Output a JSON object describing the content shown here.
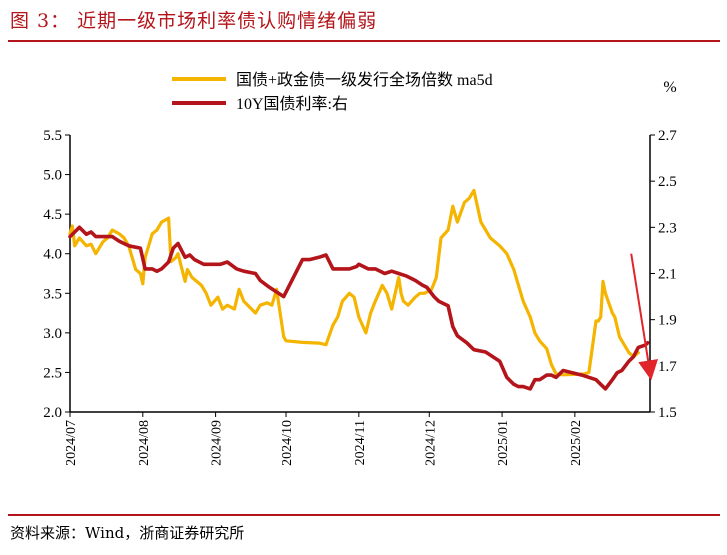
{
  "title": "图 3：  近期一级市场利率债认购情绪偏弱",
  "source": "资料来源：Wind，浙商证券研究所",
  "colors": {
    "accent": "#b3151b",
    "series_gold": "#f4b400",
    "series_red": "#b3151b"
  },
  "chart_data": {
    "type": "line",
    "y_unit_right": "%",
    "ylim_left": [
      2.0,
      5.5
    ],
    "ylim_right": [
      1.5,
      2.7
    ],
    "y_ticks_left": [
      "2.0",
      "2.5",
      "3.0",
      "3.5",
      "4.0",
      "4.5",
      "5.0",
      "5.5"
    ],
    "y_ticks_right": [
      "1.5",
      "1.7",
      "1.9",
      "2.1",
      "2.3",
      "2.5",
      "2.7"
    ],
    "x_ticks": [
      "2024/07",
      "2024/08",
      "2024/09",
      "2024/10",
      "2024/11",
      "2024/12",
      "2025/01",
      "2025/02"
    ],
    "x_range": [
      "2024-07-01",
      "2025-03-05"
    ],
    "arrow": {
      "from": [
        "2025-02-25",
        4.0
      ],
      "to": [
        "2025-03-05",
        2.5
      ]
    },
    "series": [
      {
        "name": "国债+政金债一级发行全场倍数 ma5d",
        "axis": "left",
        "color": "#f4b400",
        "points": [
          [
            "2024-07-01",
            4.25
          ],
          [
            "2024-07-02",
            4.35
          ],
          [
            "2024-07-03",
            4.1
          ],
          [
            "2024-07-05",
            4.2
          ],
          [
            "2024-07-08",
            4.1
          ],
          [
            "2024-07-10",
            4.12
          ],
          [
            "2024-07-12",
            4.0
          ],
          [
            "2024-07-15",
            4.15
          ],
          [
            "2024-07-17",
            4.2
          ],
          [
            "2024-07-19",
            4.3
          ],
          [
            "2024-07-22",
            4.25
          ],
          [
            "2024-07-24",
            4.2
          ],
          [
            "2024-07-26",
            4.1
          ],
          [
            "2024-07-29",
            3.8
          ],
          [
            "2024-07-31",
            3.75
          ],
          [
            "2024-08-01",
            3.62
          ],
          [
            "2024-08-02",
            3.95
          ],
          [
            "2024-08-05",
            4.25
          ],
          [
            "2024-08-07",
            4.3
          ],
          [
            "2024-08-09",
            4.4
          ],
          [
            "2024-08-12",
            4.45
          ],
          [
            "2024-08-13",
            3.9
          ],
          [
            "2024-08-15",
            3.95
          ],
          [
            "2024-08-16",
            4.0
          ],
          [
            "2024-08-19",
            3.65
          ],
          [
            "2024-08-20",
            3.8
          ],
          [
            "2024-08-22",
            3.7
          ],
          [
            "2024-08-26",
            3.6
          ],
          [
            "2024-08-28",
            3.5
          ],
          [
            "2024-08-30",
            3.35
          ],
          [
            "2024-09-02",
            3.45
          ],
          [
            "2024-09-04",
            3.3
          ],
          [
            "2024-09-06",
            3.35
          ],
          [
            "2024-09-09",
            3.3
          ],
          [
            "2024-09-11",
            3.55
          ],
          [
            "2024-09-13",
            3.4
          ],
          [
            "2024-09-18",
            3.25
          ],
          [
            "2024-09-20",
            3.35
          ],
          [
            "2024-09-23",
            3.38
          ],
          [
            "2024-09-25",
            3.35
          ],
          [
            "2024-09-27",
            3.55
          ],
          [
            "2024-09-30",
            2.95
          ],
          [
            "2024-10-01",
            2.9
          ],
          [
            "2024-10-08",
            2.88
          ],
          [
            "2024-10-15",
            2.87
          ],
          [
            "2024-10-18",
            2.85
          ],
          [
            "2024-10-21",
            3.1
          ],
          [
            "2024-10-23",
            3.2
          ],
          [
            "2024-10-25",
            3.4
          ],
          [
            "2024-10-28",
            3.5
          ],
          [
            "2024-10-30",
            3.45
          ],
          [
            "2024-11-01",
            3.2
          ],
          [
            "2024-11-04",
            3.0
          ],
          [
            "2024-11-06",
            3.25
          ],
          [
            "2024-11-08",
            3.4
          ],
          [
            "2024-11-11",
            3.6
          ],
          [
            "2024-11-13",
            3.5
          ],
          [
            "2024-11-15",
            3.3
          ],
          [
            "2024-11-18",
            3.7
          ],
          [
            "2024-11-19",
            3.5
          ],
          [
            "2024-11-20",
            3.4
          ],
          [
            "2024-11-22",
            3.35
          ],
          [
            "2024-11-25",
            3.45
          ],
          [
            "2024-11-27",
            3.5
          ],
          [
            "2024-11-29",
            3.5
          ],
          [
            "2024-12-02",
            3.55
          ],
          [
            "2024-12-04",
            3.7
          ],
          [
            "2024-12-06",
            4.2
          ],
          [
            "2024-12-09",
            4.3
          ],
          [
            "2024-12-11",
            4.6
          ],
          [
            "2024-12-13",
            4.4
          ],
          [
            "2024-12-16",
            4.65
          ],
          [
            "2024-12-18",
            4.7
          ],
          [
            "2024-12-20",
            4.8
          ],
          [
            "2024-12-23",
            4.4
          ],
          [
            "2024-12-25",
            4.3
          ],
          [
            "2024-12-27",
            4.2
          ],
          [
            "2024-12-31",
            4.1
          ],
          [
            "2025-01-03",
            4.0
          ],
          [
            "2025-01-06",
            3.8
          ],
          [
            "2025-01-08",
            3.6
          ],
          [
            "2025-01-10",
            3.4
          ],
          [
            "2025-01-13",
            3.2
          ],
          [
            "2025-01-15",
            3.0
          ],
          [
            "2025-01-17",
            2.9
          ],
          [
            "2025-01-20",
            2.8
          ],
          [
            "2025-01-22",
            2.6
          ],
          [
            "2025-01-24",
            2.48
          ],
          [
            "2025-01-27",
            2.47
          ],
          [
            "2025-02-05",
            2.48
          ],
          [
            "2025-02-07",
            2.5
          ],
          [
            "2025-02-10",
            3.15
          ],
          [
            "2025-02-11",
            3.15
          ],
          [
            "2025-02-12",
            3.2
          ],
          [
            "2025-02-13",
            3.65
          ],
          [
            "2025-02-14",
            3.5
          ],
          [
            "2025-02-17",
            3.25
          ],
          [
            "2025-02-18",
            3.2
          ],
          [
            "2025-02-20",
            2.95
          ],
          [
            "2025-02-24",
            2.75
          ],
          [
            "2025-02-26",
            2.7
          ],
          [
            "2025-02-28",
            2.75
          ]
        ]
      },
      {
        "name": "10Y国债利率:右",
        "axis": "right",
        "color": "#b3151b",
        "points": [
          [
            "2024-07-01",
            2.26
          ],
          [
            "2024-07-03",
            2.28
          ],
          [
            "2024-07-05",
            2.3
          ],
          [
            "2024-07-08",
            2.27
          ],
          [
            "2024-07-10",
            2.28
          ],
          [
            "2024-07-12",
            2.26
          ],
          [
            "2024-07-15",
            2.26
          ],
          [
            "2024-07-19",
            2.26
          ],
          [
            "2024-07-22",
            2.24
          ],
          [
            "2024-07-24",
            2.23
          ],
          [
            "2024-07-26",
            2.22
          ],
          [
            "2024-07-31",
            2.21
          ],
          [
            "2024-08-02",
            2.12
          ],
          [
            "2024-08-05",
            2.12
          ],
          [
            "2024-08-07",
            2.11
          ],
          [
            "2024-08-09",
            2.12
          ],
          [
            "2024-08-12",
            2.15
          ],
          [
            "2024-08-14",
            2.21
          ],
          [
            "2024-08-16",
            2.23
          ],
          [
            "2024-08-19",
            2.17
          ],
          [
            "2024-08-21",
            2.18
          ],
          [
            "2024-08-23",
            2.16
          ],
          [
            "2024-08-27",
            2.14
          ],
          [
            "2024-08-30",
            2.14
          ],
          [
            "2024-09-03",
            2.14
          ],
          [
            "2024-09-06",
            2.15
          ],
          [
            "2024-09-10",
            2.12
          ],
          [
            "2024-09-13",
            2.11
          ],
          [
            "2024-09-18",
            2.1
          ],
          [
            "2024-09-20",
            2.07
          ],
          [
            "2024-09-24",
            2.04
          ],
          [
            "2024-09-27",
            2.02
          ],
          [
            "2024-09-30",
            2.0
          ],
          [
            "2024-10-08",
            2.16
          ],
          [
            "2024-10-11",
            2.16
          ],
          [
            "2024-10-15",
            2.17
          ],
          [
            "2024-10-18",
            2.18
          ],
          [
            "2024-10-21",
            2.12
          ],
          [
            "2024-10-24",
            2.12
          ],
          [
            "2024-10-28",
            2.12
          ],
          [
            "2024-10-31",
            2.13
          ],
          [
            "2024-11-01",
            2.14
          ],
          [
            "2024-11-05",
            2.12
          ],
          [
            "2024-11-08",
            2.12
          ],
          [
            "2024-11-12",
            2.1
          ],
          [
            "2024-11-15",
            2.11
          ],
          [
            "2024-11-18",
            2.1
          ],
          [
            "2024-11-21",
            2.09
          ],
          [
            "2024-11-25",
            2.07
          ],
          [
            "2024-11-28",
            2.05
          ],
          [
            "2024-11-30",
            2.04
          ],
          [
            "2024-12-03",
            2.0
          ],
          [
            "2024-12-05",
            1.98
          ],
          [
            "2024-12-09",
            1.96
          ],
          [
            "2024-12-11",
            1.87
          ],
          [
            "2024-12-13",
            1.83
          ],
          [
            "2024-12-17",
            1.8
          ],
          [
            "2024-12-20",
            1.77
          ],
          [
            "2024-12-25",
            1.76
          ],
          [
            "2024-12-31",
            1.72
          ],
          [
            "2025-01-03",
            1.65
          ],
          [
            "2025-01-06",
            1.62
          ],
          [
            "2025-01-08",
            1.61
          ],
          [
            "2025-01-10",
            1.61
          ],
          [
            "2025-01-13",
            1.6
          ],
          [
            "2025-01-15",
            1.64
          ],
          [
            "2025-01-17",
            1.64
          ],
          [
            "2025-01-20",
            1.66
          ],
          [
            "2025-01-22",
            1.66
          ],
          [
            "2025-01-24",
            1.65
          ],
          [
            "2025-01-27",
            1.68
          ],
          [
            "2025-02-04",
            1.66
          ],
          [
            "2025-02-10",
            1.64
          ],
          [
            "2025-02-12",
            1.62
          ],
          [
            "2025-02-14",
            1.6
          ],
          [
            "2025-02-17",
            1.64
          ],
          [
            "2025-02-19",
            1.67
          ],
          [
            "2025-02-21",
            1.68
          ],
          [
            "2025-02-24",
            1.72
          ],
          [
            "2025-02-26",
            1.74
          ],
          [
            "2025-02-27",
            1.76
          ],
          [
            "2025-02-28",
            1.78
          ],
          [
            "2025-03-03",
            1.79
          ],
          [
            "2025-03-04",
            1.8
          ]
        ]
      }
    ]
  }
}
